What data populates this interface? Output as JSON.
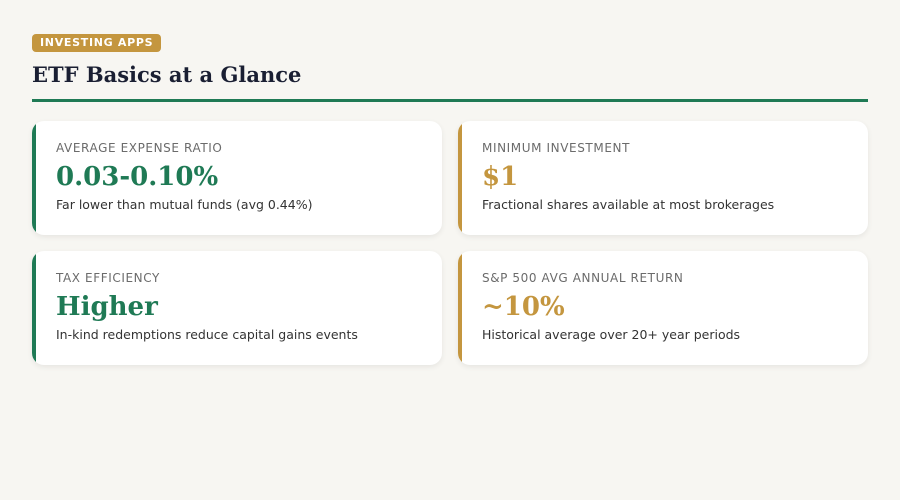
{
  "header": {
    "badge": "INVESTING APPS",
    "title": "ETF Basics at a Glance"
  },
  "colors": {
    "accent_green": "#1f7a55",
    "accent_gold": "#c4963f",
    "title_text": "#1a1f33"
  },
  "cards": [
    {
      "label": "AVERAGE EXPENSE RATIO",
      "value": "0.03-0.10%",
      "note": "Far lower than mutual funds (avg 0.44%)"
    },
    {
      "label": "MINIMUM INVESTMENT",
      "value": "$1",
      "note": "Fractional shares available at most brokerages"
    },
    {
      "label": "TAX EFFICIENCY",
      "value": "Higher",
      "note": "In-kind redemptions reduce capital gains events"
    },
    {
      "label": "S&P 500 AVG ANNUAL RETURN",
      "value": "~10%",
      "note": "Historical average over 20+ year periods"
    }
  ]
}
